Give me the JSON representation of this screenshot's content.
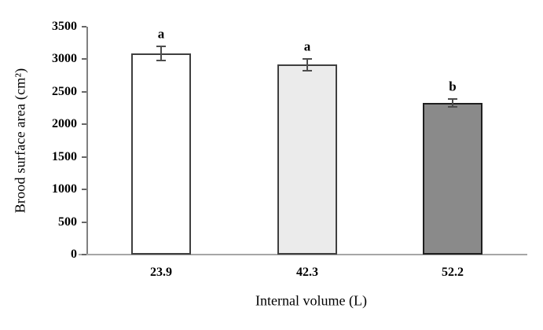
{
  "figure": {
    "background": "#ffffff"
  },
  "chart_data": {
    "type": "bar",
    "title": "",
    "xlabel": "Internal volume (L)",
    "ylabel": "Brood surface area (cm²)",
    "categories": [
      "23.9",
      "42.3",
      "52.2"
    ],
    "values": [
      3090,
      2915,
      2330
    ],
    "error_bars": [
      110,
      90,
      65
    ],
    "significance_letters": [
      "a",
      "a",
      "b"
    ],
    "ylim": [
      0,
      3500
    ],
    "ytick_step": 500,
    "yticks": [
      "3500",
      "3000",
      "2500",
      "2000",
      "1500",
      "1000",
      "500",
      "0"
    ],
    "grid": false,
    "legend": "none",
    "bar_styles": [
      {
        "name": "white-bar",
        "fill": "#ffffff",
        "border": "#3f3f3f",
        "pattern": "none"
      },
      {
        "name": "light-gray-bar",
        "fill": "#ebebeb",
        "border": "#3f3f3f",
        "pattern": "none"
      },
      {
        "name": "dark-gray-dotted-bar",
        "fill": "#8a8a8a",
        "border": "#1f1f1f",
        "pattern": "dot-weave"
      }
    ],
    "colors": {
      "y_axis_line": "#808080",
      "x_axis_line": "#a6a6a6",
      "tick_mark": "#666666",
      "error_bar": "#4d4d4d",
      "text": "#000000"
    }
  }
}
